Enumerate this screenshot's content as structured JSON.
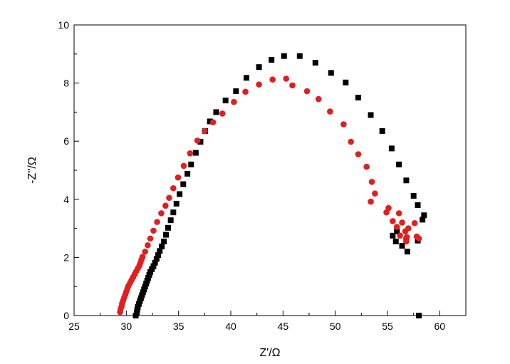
{
  "chart_data": {
    "type": "scatter",
    "title": "",
    "xlabel": "Z'/Ω",
    "ylabel": "-Z''/Ω",
    "xlim": [
      25,
      62.5
    ],
    "ylim": [
      0,
      10
    ],
    "xticks": [
      25,
      30,
      35,
      40,
      45,
      50,
      55,
      60
    ],
    "yticks": [
      0,
      2,
      4,
      6,
      8,
      10
    ],
    "grid": false,
    "legend": "none",
    "series": [
      {
        "marker": "square",
        "color": "#000000",
        "points": [
          [
            30.9,
            0.0
          ],
          [
            31.0,
            0.1
          ],
          [
            31.05,
            0.2
          ],
          [
            31.1,
            0.3
          ],
          [
            31.2,
            0.4
          ],
          [
            31.3,
            0.5
          ],
          [
            31.4,
            0.6
          ],
          [
            31.5,
            0.7
          ],
          [
            31.6,
            0.8
          ],
          [
            31.7,
            0.9
          ],
          [
            31.8,
            1.0
          ],
          [
            31.9,
            1.1
          ],
          [
            32.0,
            1.2
          ],
          [
            32.1,
            1.3
          ],
          [
            32.2,
            1.4
          ],
          [
            32.3,
            1.5
          ],
          [
            32.45,
            1.6
          ],
          [
            32.6,
            1.7
          ],
          [
            32.75,
            1.82
          ],
          [
            32.9,
            1.95
          ],
          [
            33.05,
            2.08
          ],
          [
            33.2,
            2.22
          ],
          [
            33.4,
            2.38
          ],
          [
            33.6,
            2.55
          ],
          [
            33.8,
            2.78
          ],
          [
            34.0,
            3.02
          ],
          [
            34.25,
            3.28
          ],
          [
            34.5,
            3.55
          ],
          [
            34.8,
            3.85
          ],
          [
            35.1,
            4.18
          ],
          [
            35.45,
            4.52
          ],
          [
            35.85,
            4.88
          ],
          [
            36.2,
            5.2
          ],
          [
            36.65,
            5.6
          ],
          [
            37.1,
            5.98
          ],
          [
            37.55,
            6.35
          ],
          [
            38.0,
            6.68
          ],
          [
            38.6,
            7.0
          ],
          [
            39.5,
            7.4
          ],
          [
            40.5,
            7.72
          ],
          [
            41.5,
            8.18
          ],
          [
            42.7,
            8.55
          ],
          [
            43.9,
            8.8
          ],
          [
            45.1,
            8.93
          ],
          [
            46.6,
            8.93
          ],
          [
            48.1,
            8.7
          ],
          [
            49.6,
            8.35
          ],
          [
            51.0,
            8.02
          ],
          [
            52.2,
            7.5
          ],
          [
            53.4,
            6.9
          ],
          [
            54.5,
            6.35
          ],
          [
            55.4,
            5.75
          ],
          [
            56.1,
            5.2
          ],
          [
            56.8,
            4.65
          ],
          [
            57.5,
            4.12
          ],
          [
            57.9,
            3.8
          ],
          [
            58.5,
            3.45
          ],
          [
            58.35,
            3.3
          ],
          [
            57.9,
            2.58
          ],
          [
            56.9,
            2.2
          ],
          [
            56.4,
            2.4
          ],
          [
            55.8,
            2.55
          ],
          [
            55.5,
            2.75
          ],
          [
            55.9,
            2.9
          ],
          [
            56.8,
            2.6
          ],
          [
            58.0,
            0.0
          ]
        ]
      },
      {
        "marker": "circle",
        "color": "#e01f1f",
        "points": [
          [
            29.4,
            0.12
          ],
          [
            29.45,
            0.22
          ],
          [
            29.55,
            0.32
          ],
          [
            29.6,
            0.42
          ],
          [
            29.7,
            0.52
          ],
          [
            29.8,
            0.62
          ],
          [
            29.9,
            0.72
          ],
          [
            30.0,
            0.82
          ],
          [
            30.1,
            0.92
          ],
          [
            30.2,
            1.02
          ],
          [
            30.35,
            1.12
          ],
          [
            30.5,
            1.22
          ],
          [
            30.65,
            1.32
          ],
          [
            30.8,
            1.42
          ],
          [
            30.95,
            1.52
          ],
          [
            31.1,
            1.62
          ],
          [
            31.25,
            1.72
          ],
          [
            31.35,
            1.82
          ],
          [
            31.45,
            1.92
          ],
          [
            31.55,
            2.02
          ],
          [
            31.8,
            2.2
          ],
          [
            32.05,
            2.42
          ],
          [
            32.3,
            2.65
          ],
          [
            32.6,
            2.92
          ],
          [
            32.95,
            3.22
          ],
          [
            33.35,
            3.52
          ],
          [
            33.75,
            3.78
          ],
          [
            34.1,
            4.05
          ],
          [
            34.5,
            4.38
          ],
          [
            34.95,
            4.75
          ],
          [
            35.5,
            5.15
          ],
          [
            36.1,
            5.58
          ],
          [
            36.8,
            6.02
          ],
          [
            37.5,
            6.35
          ],
          [
            38.3,
            6.65
          ],
          [
            39.2,
            6.95
          ],
          [
            40.3,
            7.35
          ],
          [
            41.4,
            7.7
          ],
          [
            42.7,
            7.95
          ],
          [
            44.0,
            8.12
          ],
          [
            45.3,
            8.15
          ],
          [
            45.9,
            7.92
          ],
          [
            47.3,
            7.72
          ],
          [
            48.4,
            7.45
          ],
          [
            49.5,
            7.02
          ],
          [
            50.8,
            6.58
          ],
          [
            51.5,
            5.98
          ],
          [
            52.2,
            5.55
          ],
          [
            53.0,
            5.12
          ],
          [
            53.5,
            4.6
          ],
          [
            53.8,
            4.2
          ],
          [
            53.4,
            3.92
          ],
          [
            54.9,
            3.55
          ],
          [
            55.1,
            3.7
          ],
          [
            55.5,
            3.25
          ],
          [
            55.9,
            3.05
          ],
          [
            56.1,
            3.52
          ],
          [
            56.4,
            3.2
          ],
          [
            56.7,
            2.9
          ],
          [
            56.85,
            2.7
          ],
          [
            57.0,
            3.0
          ],
          [
            57.6,
            3.18
          ],
          [
            57.8,
            2.72
          ],
          [
            58.0,
            2.65
          ],
          [
            56.2,
            2.75
          ],
          [
            56.8,
            2.55
          ]
        ]
      }
    ]
  }
}
